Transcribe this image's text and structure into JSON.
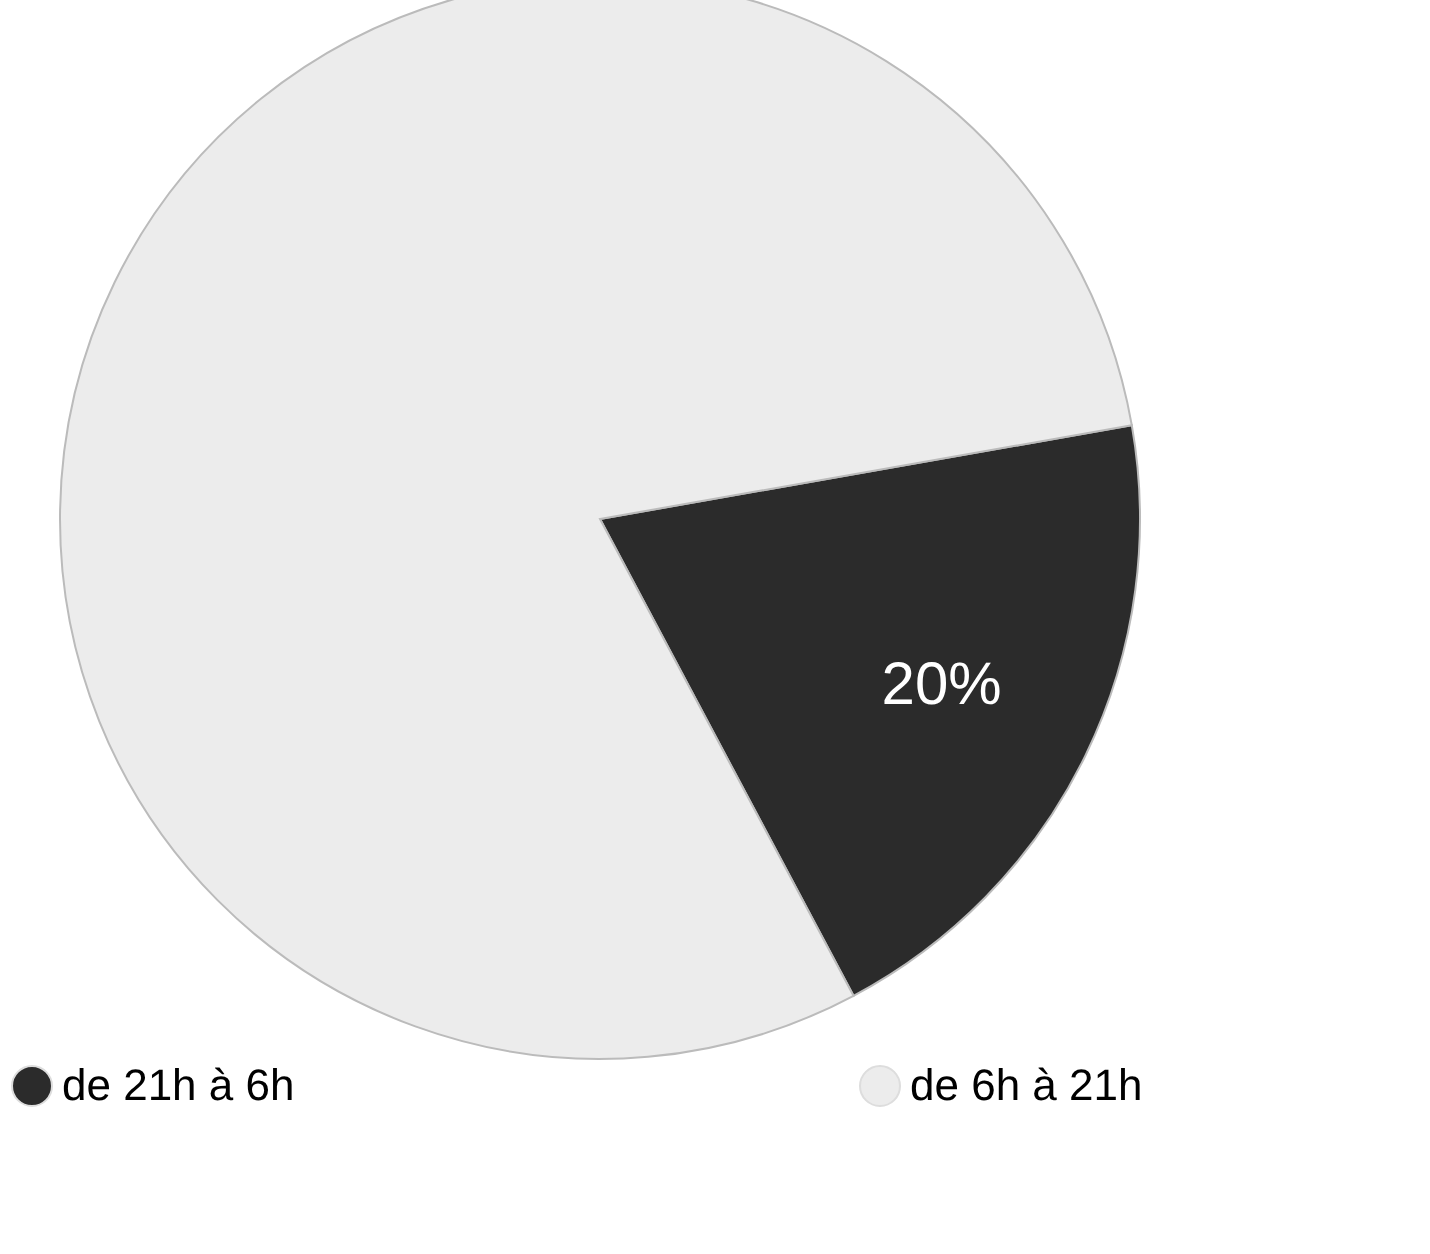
{
  "chart_data": {
    "type": "pie",
    "categories": [
      "de 21h à 6h",
      "de 6h à 21h"
    ],
    "values": [
      20,
      80
    ],
    "colors": [
      "#2b2b2b",
      "#ececec"
    ],
    "value_labels": [
      "20%",
      null
    ],
    "legend": "bottom"
  }
}
